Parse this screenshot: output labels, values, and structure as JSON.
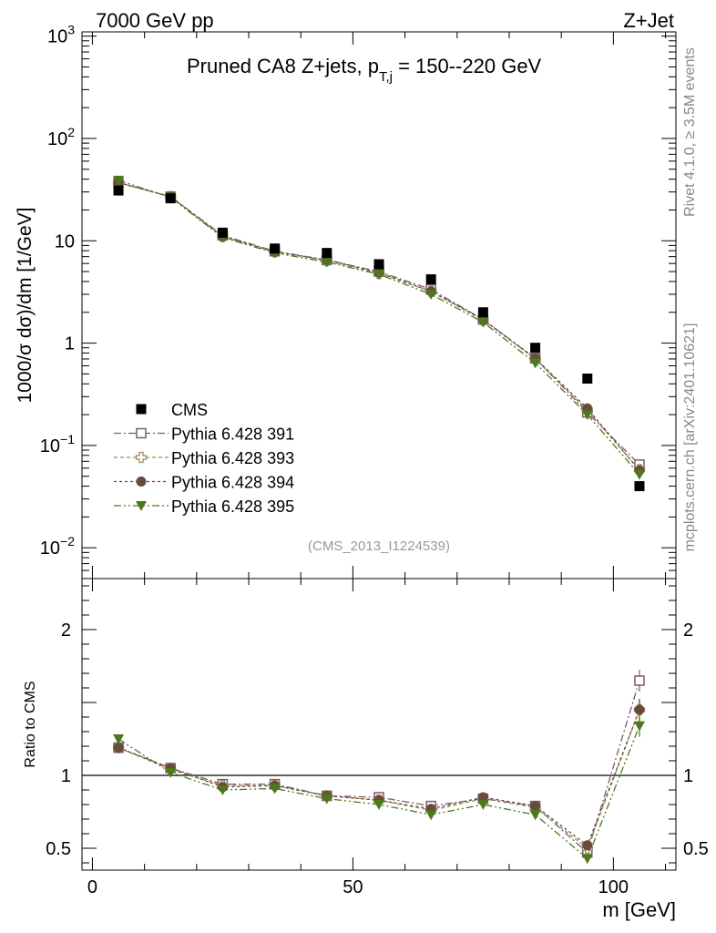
{
  "header": {
    "left": "7000 GeV pp",
    "right": "Z+Jet"
  },
  "side_text": {
    "rivet": "Rivet 4.1.0, ≥ 3.5M events",
    "mcplots": "mcplots.cern.ch [arXiv:2401.10621]"
  },
  "chart_data": {
    "type": "scatter",
    "title": "Pruned CA8 Z+jets, p",
    "title_sub": "T,j",
    "title_rest": " = 150--220 GeV",
    "watermark": "(CMS_2013_I1224539)",
    "xlabel": "m [GeV]",
    "ylabel_main": "1000/σ  dσ)/dm [1/GeV]",
    "ylabel_ratio": "Ratio to CMS",
    "xlim": [
      -2,
      112
    ],
    "ylim_main": [
      0.005,
      1100
    ],
    "ylim_ratio": [
      0.35,
      2.35
    ],
    "scale_main": "log",
    "x": [
      5,
      15,
      25,
      35,
      45,
      55,
      65,
      75,
      85,
      95,
      105
    ],
    "x_ticks": [
      "0",
      "50",
      "100"
    ],
    "x_tick_values": [
      0,
      50,
      100
    ],
    "main_ticks": [
      {
        "base": "10",
        "exp": "3",
        "v": 1000
      },
      {
        "base": "10",
        "exp": "2",
        "v": 100
      },
      {
        "base": "10",
        "exp": "",
        "v": 10
      },
      {
        "base": "1",
        "exp": "",
        "v": 1
      },
      {
        "base": "10",
        "exp": "−1",
        "v": 0.1
      },
      {
        "base": "10",
        "exp": "−2",
        "v": 0.01
      }
    ],
    "ratio_ticks": [
      "0.5",
      "1",
      "2"
    ],
    "ratio_tick_values": [
      0.5,
      1,
      2
    ],
    "data": {
      "name": "CMS",
      "values": [
        31,
        26,
        12,
        8.4,
        7.6,
        5.9,
        4.2,
        2.0,
        0.9,
        0.45,
        0.04
      ]
    },
    "series": [
      {
        "name": "Pythia 6.428 391",
        "color": "#7a5c6e",
        "marker": "open-square",
        "dash": "8,3,2,3",
        "values": [
          37,
          27,
          11.3,
          7.9,
          6.5,
          5.0,
          3.35,
          1.7,
          0.71,
          0.21,
          0.065
        ],
        "ratio": [
          1.19,
          1.05,
          0.94,
          0.94,
          0.86,
          0.85,
          0.79,
          0.84,
          0.79,
          0.47,
          1.65
        ]
      },
      {
        "name": "Pythia 6.428 393",
        "color": "#9a8a5a",
        "marker": "open-cross",
        "dash": "4,3",
        "values": [
          37,
          27,
          11,
          7.8,
          6.4,
          4.8,
          3.2,
          1.68,
          0.7,
          0.22,
          0.058
        ],
        "ratio": [
          1.19,
          1.04,
          0.93,
          0.93,
          0.86,
          0.83,
          0.76,
          0.84,
          0.78,
          0.5,
          1.45
        ]
      },
      {
        "name": "Pythia 6.428 394",
        "color": "#6a4a3a",
        "marker": "filled-circle",
        "dash": "3,3",
        "values": [
          37,
          27,
          11,
          7.8,
          6.5,
          4.9,
          3.2,
          1.7,
          0.71,
          0.23,
          0.057
        ],
        "ratio": [
          1.19,
          1.05,
          0.92,
          0.93,
          0.86,
          0.83,
          0.77,
          0.85,
          0.79,
          0.52,
          1.45
        ]
      },
      {
        "name": "Pythia 6.428 395",
        "color": "#4a7a1a",
        "marker": "filled-triangle-down",
        "dash": "8,3,2,3,2,3",
        "values": [
          39,
          26.5,
          10.8,
          7.6,
          6.2,
          4.7,
          3.0,
          1.6,
          0.64,
          0.2,
          0.052
        ],
        "ratio": [
          1.25,
          1.02,
          0.9,
          0.91,
          0.84,
          0.8,
          0.73,
          0.8,
          0.73,
          0.43,
          1.34
        ]
      }
    ]
  }
}
